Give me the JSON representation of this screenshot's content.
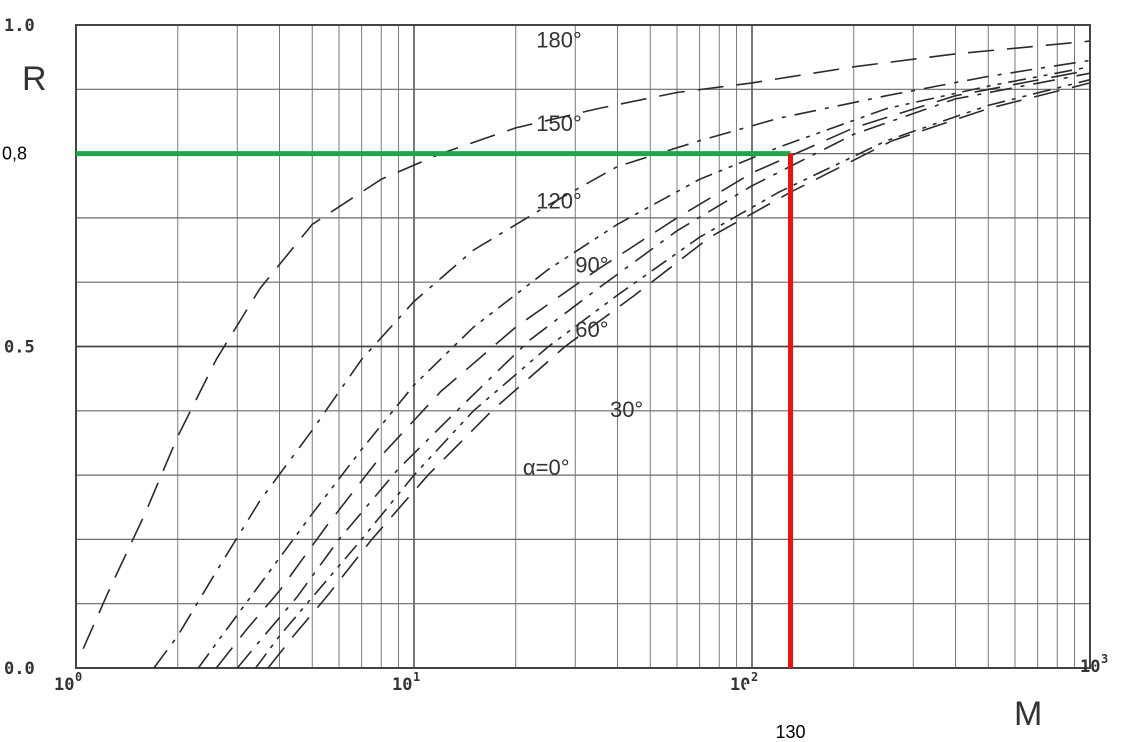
{
  "chart_data": {
    "type": "line",
    "xscale": "log",
    "xlim": [
      1,
      1000
    ],
    "ylim": [
      0.0,
      1.0
    ],
    "ylabel": "R",
    "xlabel": "M",
    "y_ticks": [
      {
        "value": 0.0,
        "label": "0.0"
      },
      {
        "value": 0.5,
        "label": "0.5"
      },
      {
        "value": 1.0,
        "label": "1.0"
      }
    ],
    "x_ticks": [
      {
        "value": 1,
        "base": "10",
        "exp": "0"
      },
      {
        "value": 10,
        "base": "10",
        "exp": "1"
      },
      {
        "value": 100,
        "base": "10",
        "exp": "2"
      },
      {
        "value": 1000,
        "base": "10",
        "exp": "3"
      }
    ],
    "grid": true,
    "series": [
      {
        "name": "180°",
        "dash": "long",
        "x": [
          1.05,
          1.25,
          1.6,
          2.0,
          2.6,
          3.5,
          5,
          8,
          12,
          20,
          35,
          60,
          100,
          200,
          400,
          1000
        ],
        "y": [
          0.03,
          0.12,
          0.24,
          0.36,
          0.48,
          0.59,
          0.69,
          0.76,
          0.8,
          0.84,
          0.87,
          0.895,
          0.91,
          0.935,
          0.955,
          0.975
        ]
      },
      {
        "name": "150°",
        "dash": "dashdot",
        "x": [
          1.7,
          2.0,
          2.6,
          3.5,
          5,
          7,
          10,
          15,
          25,
          40,
          70,
          120,
          250,
          500,
          1000
        ],
        "y": [
          0.0,
          0.05,
          0.15,
          0.26,
          0.37,
          0.48,
          0.57,
          0.65,
          0.72,
          0.78,
          0.82,
          0.855,
          0.89,
          0.92,
          0.945
        ]
      },
      {
        "name": "120°",
        "dash": "dashdotdot",
        "x": [
          2.3,
          2.7,
          3.5,
          5,
          7,
          10,
          15,
          25,
          40,
          70,
          120,
          250,
          500,
          1000
        ],
        "y": [
          0.0,
          0.05,
          0.13,
          0.24,
          0.34,
          0.44,
          0.53,
          0.62,
          0.69,
          0.76,
          0.81,
          0.87,
          0.905,
          0.935
        ]
      },
      {
        "name": "90°",
        "dash": "long",
        "x": [
          2.6,
          3.2,
          4,
          5.5,
          8,
          12,
          20,
          35,
          60,
          100,
          200,
          400,
          1000
        ],
        "y": [
          0.0,
          0.06,
          0.12,
          0.22,
          0.33,
          0.43,
          0.53,
          0.62,
          0.7,
          0.77,
          0.84,
          0.89,
          0.93
        ]
      },
      {
        "name": "60°",
        "dash": "dashdot",
        "x": [
          3.0,
          3.6,
          4.5,
          6,
          9,
          14,
          22,
          35,
          60,
          100,
          200,
          400,
          1000
        ],
        "y": [
          0.0,
          0.05,
          0.11,
          0.2,
          0.31,
          0.41,
          0.51,
          0.59,
          0.68,
          0.75,
          0.83,
          0.885,
          0.925
        ]
      },
      {
        "name": "30°",
        "dash": "dashdotdot",
        "x": [
          3.4,
          4.0,
          5,
          7,
          10,
          15,
          25,
          40,
          70,
          120,
          250,
          500,
          1000
        ],
        "y": [
          0.0,
          0.05,
          0.11,
          0.2,
          0.3,
          0.4,
          0.5,
          0.58,
          0.67,
          0.74,
          0.82,
          0.875,
          0.915
        ]
      },
      {
        "name": "α=0°",
        "dash": "long",
        "x": [
          3.7,
          4.4,
          5.5,
          7.5,
          11,
          17,
          28,
          45,
          75,
          130,
          260,
          500,
          1000
        ],
        "y": [
          0.0,
          0.05,
          0.11,
          0.2,
          0.3,
          0.4,
          0.5,
          0.58,
          0.67,
          0.74,
          0.82,
          0.87,
          0.91
        ]
      }
    ],
    "curve_labels": [
      {
        "text": "180°",
        "x": 23,
        "y": 0.965
      },
      {
        "text": "150°",
        "x": 23,
        "y": 0.835
      },
      {
        "text": "120°",
        "x": 23,
        "y": 0.715
      },
      {
        "text": "90°",
        "x": 30,
        "y": 0.615
      },
      {
        "text": "60°",
        "x": 30,
        "y": 0.515
      },
      {
        "text": "30°",
        "x": 38,
        "y": 0.39
      },
      {
        "text": "α=0°",
        "x": 21,
        "y": 0.3
      }
    ],
    "annotations": [
      {
        "type": "hline",
        "y": 0.8,
        "x_from": 1,
        "x_to": 130,
        "color": "#1fa64a",
        "label": "0,8"
      },
      {
        "type": "vline",
        "x": 130,
        "y_from": 0.0,
        "y_to": 0.8,
        "color": "#ee1111",
        "label": "130"
      }
    ]
  }
}
